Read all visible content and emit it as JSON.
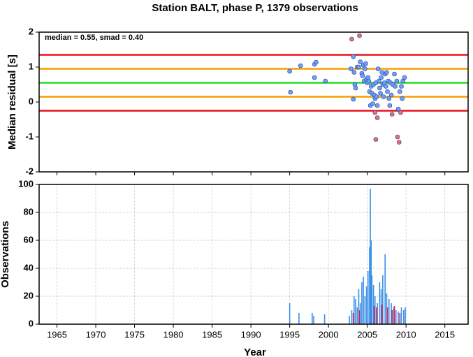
{
  "chart_data": [
    {
      "type": "scatter",
      "title": "Station BALT, phase P, 1379 observations",
      "y_label": "Median residual [s]",
      "annotation": "median = 0.55, smad = 0.40",
      "xlim": [
        1962.7,
        2018
      ],
      "xticks": [
        1965,
        1970,
        1975,
        1980,
        1985,
        1990,
        1995,
        2000,
        2005,
        2010,
        2015
      ],
      "ylim": [
        -2,
        2
      ],
      "yticks": [
        -2,
        -1,
        0,
        1,
        2
      ],
      "grid": false,
      "hlines": [
        {
          "value": 1.35,
          "color": "#e8101a"
        },
        {
          "value": 0.95,
          "color": "#f5a100"
        },
        {
          "value": 0.55,
          "color": "#22dd22"
        },
        {
          "value": 0.15,
          "color": "#f5a100"
        },
        {
          "value": -0.25,
          "color": "#e8101a"
        }
      ],
      "series": [
        {
          "color": "#6d9ff5",
          "x": [
            1995.0,
            1995.1,
            1996.4,
            1998.2,
            1998.4,
            1998.2,
            1999.6,
            2002.9,
            2003.2,
            2003.3,
            2003.4,
            2003.5,
            2003.2,
            2003.7,
            2003.9,
            2004.1,
            2004.3,
            2004.4,
            2004.5,
            2004.6,
            2004.7,
            2004.8,
            2004.9,
            2005.0,
            2005.1,
            2005.2,
            2005.3,
            2005.4,
            2005.5,
            2005.6,
            2005.7,
            2005.8,
            2005.9,
            2006.0,
            2006.1,
            2006.2,
            2006.3,
            2006.4,
            2006.5,
            2006.6,
            2006.7,
            2006.8,
            2006.9,
            2007.0,
            2007.1,
            2007.2,
            2007.3,
            2007.4,
            2007.5,
            2007.6,
            2007.7,
            2007.8,
            2007.9,
            2008.0,
            2008.1,
            2008.3,
            2008.5,
            2008.6,
            2008.8,
            2009.0,
            2009.2,
            2009.4,
            2009.5,
            2009.6,
            2009.8
          ],
          "values": [
            0.88,
            0.28,
            1.04,
            1.08,
            1.14,
            0.7,
            0.6,
            0.95,
            1.3,
            0.85,
            0.5,
            0.4,
            0.08,
            1.0,
            1.0,
            1.15,
            0.82,
            0.75,
            1.05,
            0.6,
            0.95,
            1.1,
            0.65,
            0.55,
            0.7,
            0.6,
            0.3,
            -0.1,
            0.45,
            0.25,
            -0.05,
            0.5,
            0.2,
            0.1,
            0.55,
            0.15,
            -0.1,
            0.95,
            0.6,
            0.4,
            0.25,
            0.7,
            0.85,
            0.5,
            0.15,
            0.55,
            0.8,
            0.45,
            0.85,
            0.3,
            0.6,
            0.1,
            -0.1,
            0.55,
            0.2,
            0.5,
            0.8,
            0.45,
            0.6,
            -0.2,
            0.3,
            0.45,
            0.1,
            0.6,
            0.7
          ]
        },
        {
          "color": "#f46a6a",
          "x": [
            2003.0,
            2004.0,
            2006.0,
            2006.3,
            2006.1,
            2008.2,
            2008.9,
            2009.1,
            2009.3
          ],
          "values": [
            1.8,
            1.9,
            -0.3,
            -0.45,
            -1.07,
            -0.35,
            -1.0,
            -1.15,
            -0.3
          ]
        }
      ]
    },
    {
      "type": "bar",
      "x_label": "Year",
      "y_label": "Observations",
      "xlim": [
        1962.7,
        2018
      ],
      "xticks": [
        1965,
        1970,
        1975,
        1980,
        1985,
        1990,
        1995,
        2000,
        2005,
        2010,
        2015
      ],
      "ylim": [
        0,
        100
      ],
      "yticks": [
        0,
        20,
        40,
        60,
        80,
        100
      ],
      "grid": true,
      "series": [
        {
          "color": "#3a90e8",
          "x": [
            1995.0,
            1996.2,
            1997.9,
            1998.1,
            1999.5,
            2002.7,
            2003.0,
            2003.3,
            2003.5,
            2003.7,
            2003.9,
            2004.1,
            2004.3,
            2004.5,
            2004.7,
            2004.9,
            2005.1,
            2005.3,
            2005.4,
            2005.5,
            2005.6,
            2005.8,
            2006.0,
            2006.3,
            2006.6,
            2006.8,
            2007.0,
            2007.3,
            2007.5,
            2007.8,
            2008.1,
            2008.4,
            2008.7,
            2009.0,
            2009.4,
            2009.7,
            2009.9
          ],
          "values": [
            15,
            8,
            8,
            6,
            7,
            6,
            10,
            20,
            18,
            12,
            25,
            15,
            30,
            34,
            20,
            27,
            38,
            55,
            97,
            60,
            35,
            28,
            20,
            15,
            30,
            25,
            35,
            50,
            22,
            18,
            15,
            12,
            10,
            9,
            12,
            10,
            12
          ]
        },
        {
          "color": "#d4204e",
          "x": [
            2003.2,
            2004.0,
            2005.9,
            2006.2,
            2006.9,
            2007.6,
            2008.2,
            2008.5,
            2009.2
          ],
          "values": [
            8,
            10,
            13,
            12,
            14,
            12,
            10,
            13,
            8
          ]
        }
      ]
    }
  ]
}
